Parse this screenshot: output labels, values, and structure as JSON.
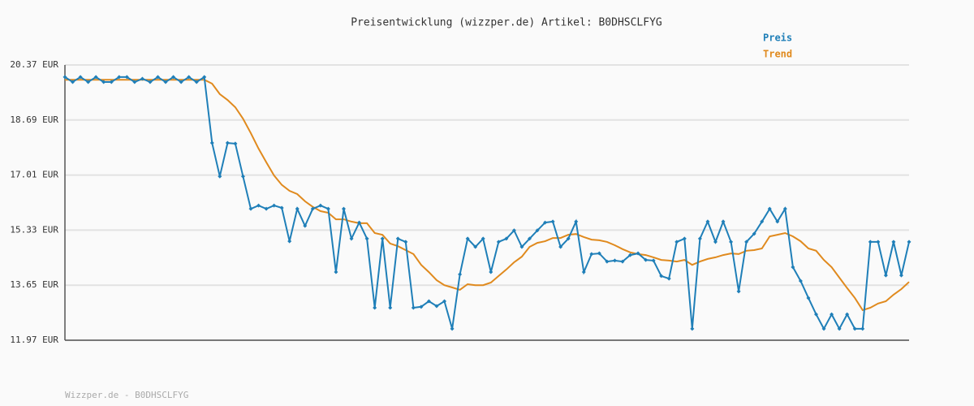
{
  "chart_data": {
    "type": "line",
    "title": "Preisentwicklung (wizzper.de) Artikel: B0DHSCLFYG",
    "footer": "Wizzper.de - B0DHSCLFYG",
    "ylim": [
      11.97,
      20.37
    ],
    "yticks": [
      {
        "value": 11.97,
        "label": "11.97 EUR"
      },
      {
        "value": 13.65,
        "label": "13.65 EUR"
      },
      {
        "value": 15.33,
        "label": "15.33 EUR"
      },
      {
        "value": 17.01,
        "label": "17.01 EUR"
      },
      {
        "value": 18.69,
        "label": "18.69 EUR"
      },
      {
        "value": 20.37,
        "label": "20.37 EUR"
      }
    ],
    "grid": true,
    "legend": "top-right",
    "series": [
      {
        "name": "Preis",
        "color": "#1f7fb8",
        "values": [
          20.0,
          19.85,
          20.0,
          19.85,
          20.0,
          19.85,
          19.85,
          20.0,
          20.0,
          19.85,
          19.95,
          19.85,
          20.0,
          19.85,
          20.0,
          19.85,
          20.0,
          19.85,
          20.0,
          17.99,
          16.97,
          17.99,
          17.97,
          16.97,
          15.98,
          16.08,
          15.98,
          16.08,
          16.01,
          14.99,
          15.98,
          15.46,
          15.98,
          16.08,
          15.98,
          14.05,
          15.98,
          15.07,
          15.56,
          15.07,
          12.96,
          15.07,
          12.96,
          15.07,
          14.97,
          12.96,
          12.99,
          13.16,
          13.01,
          13.16,
          12.32,
          13.98,
          15.07,
          14.82,
          15.07,
          14.05,
          14.97,
          15.07,
          15.32,
          14.82,
          15.07,
          15.32,
          15.56,
          15.59,
          14.82,
          15.07,
          15.59,
          14.05,
          14.6,
          14.62,
          14.37,
          14.4,
          14.37,
          14.57,
          14.62,
          14.42,
          14.4,
          13.93,
          13.85,
          14.97,
          15.07,
          12.32,
          15.07,
          15.59,
          14.97,
          15.59,
          14.97,
          13.46,
          14.97,
          15.22,
          15.59,
          15.98,
          15.59,
          15.98,
          14.2,
          13.78,
          13.26,
          12.76,
          12.32,
          12.76,
          12.32,
          12.76,
          12.32,
          12.32,
          14.97,
          14.97,
          13.95,
          14.97,
          13.95,
          14.97
        ],
        "markers": true
      },
      {
        "name": "Trend",
        "color": "#e08a1e",
        "values": [
          19.92,
          19.92,
          19.92,
          19.92,
          19.92,
          19.92,
          19.92,
          19.92,
          19.92,
          19.92,
          19.92,
          19.92,
          19.92,
          19.92,
          19.92,
          19.92,
          19.92,
          19.92,
          19.92,
          19.8,
          19.48,
          19.3,
          19.08,
          18.73,
          18.29,
          17.82,
          17.4,
          17.0,
          16.71,
          16.53,
          16.43,
          16.21,
          16.04,
          15.91,
          15.86,
          15.66,
          15.66,
          15.59,
          15.54,
          15.54,
          15.24,
          15.19,
          14.92,
          14.84,
          14.72,
          14.6,
          14.27,
          14.05,
          13.8,
          13.65,
          13.58,
          13.51,
          13.68,
          13.65,
          13.65,
          13.73,
          13.93,
          14.13,
          14.35,
          14.52,
          14.82,
          14.94,
          14.99,
          15.09,
          15.09,
          15.19,
          15.21,
          15.12,
          15.04,
          15.02,
          14.97,
          14.87,
          14.75,
          14.65,
          14.6,
          14.57,
          14.5,
          14.42,
          14.4,
          14.37,
          14.42,
          14.27,
          14.37,
          14.45,
          14.5,
          14.57,
          14.62,
          14.6,
          14.7,
          14.72,
          14.77,
          15.14,
          15.19,
          15.24,
          15.14,
          14.99,
          14.77,
          14.7,
          14.42,
          14.2,
          13.88,
          13.56,
          13.26,
          12.89,
          12.96,
          13.09,
          13.16,
          13.36,
          13.53,
          13.75
        ],
        "markers": false
      }
    ]
  }
}
